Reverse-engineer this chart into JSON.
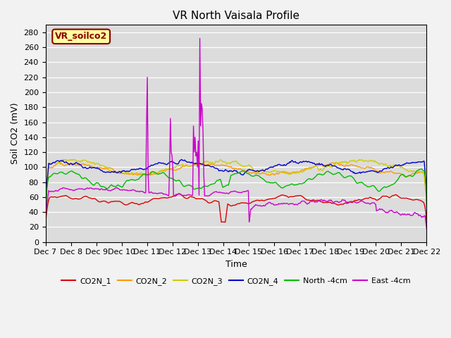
{
  "title": "VR North Vaisala Profile",
  "xlabel": "Time",
  "ylabel": "Soil CO2 (mV)",
  "ylim": [
    0,
    290
  ],
  "yticks": [
    0,
    20,
    40,
    60,
    80,
    100,
    120,
    140,
    160,
    180,
    200,
    220,
    240,
    260,
    280
  ],
  "annotation_text": "VR_soilco2",
  "annotation_color": "#8B0000",
  "annotation_bg": "#FFFFA0",
  "bg_color": "#DCDCDC",
  "fig_color": "#F2F2F2",
  "grid_color": "#FFFFFF",
  "series": {
    "CO2N_1": {
      "color": "#DD0000",
      "lw": 1.0
    },
    "CO2N_2": {
      "color": "#FF9900",
      "lw": 1.0
    },
    "CO2N_3": {
      "color": "#CCCC00",
      "lw": 1.0
    },
    "CO2N_4": {
      "color": "#0000CC",
      "lw": 1.0
    },
    "North -4cm": {
      "color": "#00BB00",
      "lw": 1.0
    },
    "East -4cm": {
      "color": "#CC00CC",
      "lw": 1.0
    }
  },
  "xticklabels": [
    "Dec 7",
    "Dec 8",
    "Dec 9",
    "Dec 10",
    "Dec 11",
    "Dec 12",
    "Dec 13",
    "Dec 14",
    "Dec 15",
    "Dec 16",
    "Dec 17",
    "Dec 18",
    "Dec 19",
    "Dec 20",
    "Dec 21",
    "Dec 22"
  ]
}
